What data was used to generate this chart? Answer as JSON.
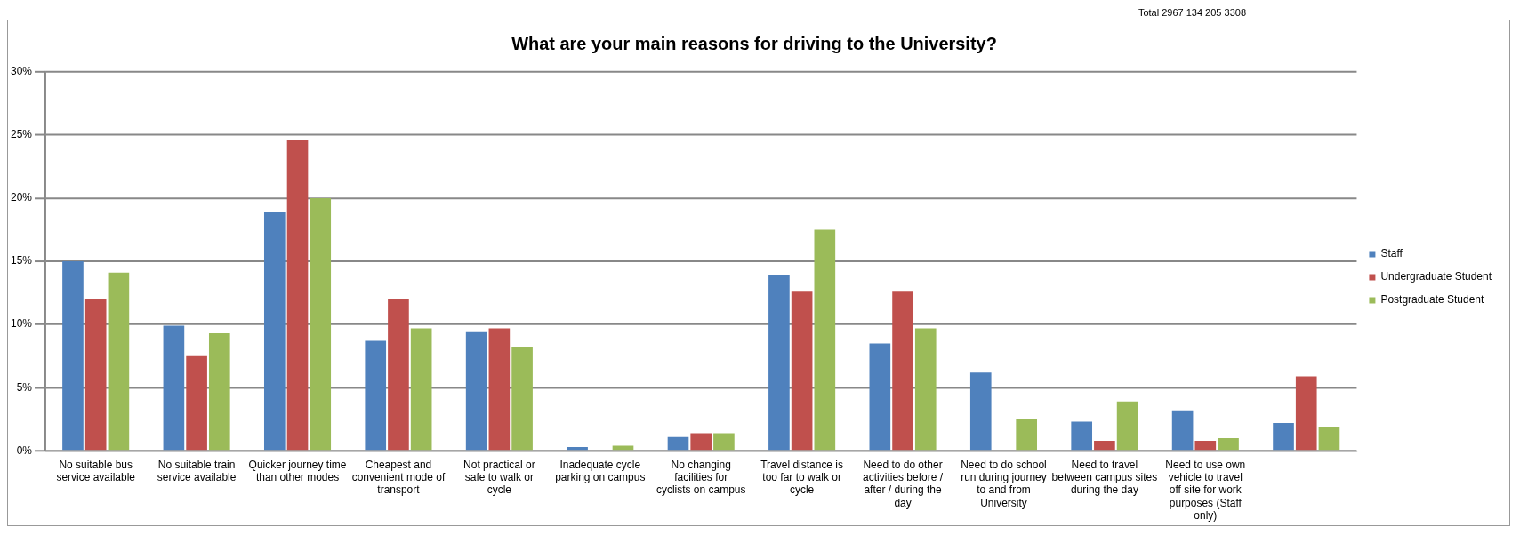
{
  "chart_data": {
    "type": "bar",
    "title": "What are your main reasons for driving to the University?",
    "categories": [
      "No suitable bus service available",
      "No suitable train service available",
      "Quicker journey time than other modes",
      "Cheapest and convenient mode of transport",
      "Not practical or safe to walk or cycle",
      "Inadequate cycle parking on campus",
      "No changing facilities for cyclists on campus",
      "Travel distance is too far to walk or cycle",
      "Need to do other activities before / after / during the day",
      "Need to do school run during journey to and from University",
      "Need to travel between campus sites during the day",
      "Need to use own vehicle to travel off site for work purposes (Staff only)",
      null
    ],
    "series": [
      {
        "name": "Staff",
        "color": "#4f81bd",
        "values": [
          15.0,
          9.9,
          18.9,
          8.7,
          9.4,
          0.3,
          1.1,
          13.9,
          8.5,
          6.2,
          2.3,
          3.2,
          2.2
        ]
      },
      {
        "name": "Undergraduate Student",
        "color": "#c0504d",
        "values": [
          12.0,
          7.5,
          24.6,
          12.0,
          9.7,
          0,
          1.4,
          12.6,
          12.6,
          0,
          0.8,
          0.8,
          5.9
        ]
      },
      {
        "name": "Postgraduate Student",
        "color": "#9bbb59",
        "values": [
          14.1,
          9.3,
          20.0,
          9.7,
          8.2,
          0.4,
          1.4,
          17.5,
          9.7,
          2.5,
          3.9,
          1.0,
          1.9
        ]
      }
    ],
    "ylim": [
      0,
      30
    ],
    "yticks": [
      {
        "value": 0,
        "label": "0%"
      },
      {
        "value": 5,
        "label": "5%"
      },
      {
        "value": 10,
        "label": "10%"
      },
      {
        "value": 15,
        "label": "15%"
      },
      {
        "value": 20,
        "label": "20%"
      },
      {
        "value": 25,
        "label": "25%"
      },
      {
        "value": 30,
        "label": "30%"
      }
    ],
    "grid": "y",
    "legend": "right",
    "annotations": [
      "Total 2967 134 205 3308"
    ]
  }
}
